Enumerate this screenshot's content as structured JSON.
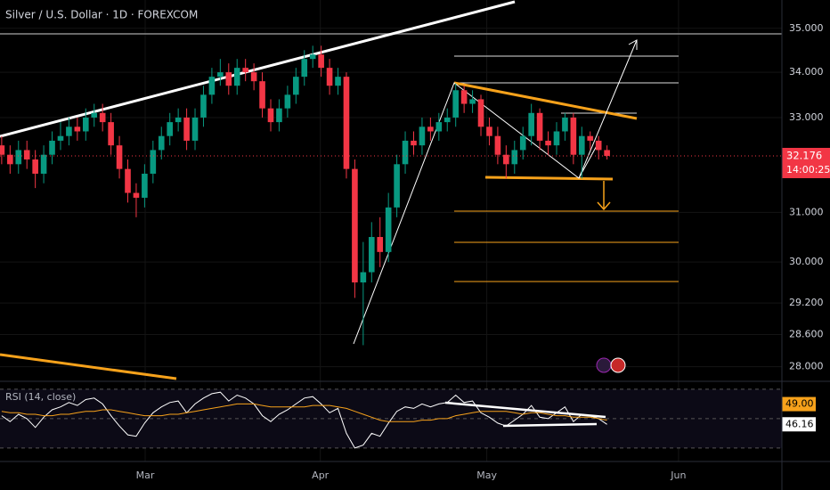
{
  "chart_data": [
    {
      "type": "candlestick",
      "title": "Silver / U.S. Dollar · 1D · FOREXCOM",
      "open": [
        32.4,
        32.2,
        32.0,
        32.3,
        32.1,
        31.8,
        32.2,
        32.5,
        32.6,
        32.8,
        32.7,
        33.0,
        33.1,
        32.9,
        32.4,
        31.9,
        31.4,
        31.3,
        31.8,
        32.3,
        32.6,
        32.9,
        33.0,
        32.5,
        33.0,
        33.5,
        33.9,
        34.0,
        33.7,
        34.1,
        34.0,
        33.8,
        33.2,
        32.9,
        33.2,
        33.5,
        33.9,
        34.3,
        34.4,
        34.1,
        33.7,
        33.9,
        31.9,
        29.6,
        29.8,
        30.5,
        30.2,
        31.1,
        32.0,
        32.5,
        32.4,
        32.8,
        32.7,
        32.9,
        33.0,
        33.6,
        33.3,
        33.4,
        32.8,
        32.6,
        32.2,
        32.0,
        32.3,
        32.6,
        33.1,
        32.5,
        32.4,
        32.7,
        33.0,
        32.2,
        32.6,
        32.5,
        32.3
      ],
      "high": [
        32.6,
        32.4,
        32.5,
        32.5,
        32.3,
        32.4,
        32.7,
        32.9,
        33.0,
        33.0,
        33.2,
        33.3,
        33.3,
        33.1,
        32.6,
        32.1,
        31.6,
        32.0,
        32.5,
        32.8,
        33.1,
        33.2,
        33.2,
        33.2,
        33.7,
        34.1,
        34.3,
        34.2,
        34.3,
        34.3,
        34.2,
        34.0,
        33.4,
        33.4,
        33.7,
        34.1,
        34.5,
        34.6,
        34.6,
        34.3,
        34.1,
        34.0,
        32.1,
        30.4,
        30.8,
        30.9,
        31.4,
        32.2,
        32.7,
        32.7,
        33.0,
        33.0,
        33.1,
        33.2,
        33.75,
        33.7,
        33.6,
        33.5,
        33.0,
        32.8,
        32.4,
        32.5,
        32.8,
        33.3,
        33.2,
        32.7,
        32.9,
        33.1,
        33.1,
        32.8,
        32.7,
        32.6,
        32.4
      ],
      "low": [
        32.0,
        31.8,
        31.8,
        31.9,
        31.5,
        31.6,
        32.0,
        32.3,
        32.4,
        32.5,
        32.5,
        32.8,
        32.7,
        32.2,
        31.7,
        31.2,
        30.9,
        31.1,
        31.6,
        32.1,
        32.4,
        32.7,
        32.3,
        32.3,
        32.8,
        33.3,
        33.7,
        33.5,
        33.5,
        33.8,
        33.6,
        33.0,
        32.7,
        32.7,
        33.0,
        33.3,
        33.7,
        34.1,
        33.9,
        33.5,
        33.5,
        31.7,
        29.3,
        28.4,
        29.6,
        29.9,
        30.0,
        30.9,
        31.8,
        32.2,
        32.2,
        32.5,
        32.5,
        32.7,
        32.8,
        33.1,
        33.1,
        32.6,
        32.4,
        32.0,
        31.7,
        31.8,
        32.1,
        32.4,
        32.3,
        32.2,
        32.2,
        32.5,
        32.0,
        31.7,
        32.3,
        32.1,
        32.1
      ],
      "close": [
        32.2,
        32.0,
        32.3,
        32.1,
        31.8,
        32.2,
        32.5,
        32.6,
        32.8,
        32.7,
        33.0,
        33.1,
        32.9,
        32.4,
        31.9,
        31.4,
        31.3,
        31.8,
        32.3,
        32.6,
        32.9,
        33.0,
        32.5,
        33.0,
        33.5,
        33.9,
        34.0,
        33.7,
        34.1,
        34.0,
        33.8,
        33.2,
        32.9,
        33.2,
        33.5,
        33.9,
        34.3,
        34.4,
        34.1,
        33.7,
        33.9,
        31.9,
        29.6,
        29.8,
        30.5,
        30.2,
        31.1,
        32.0,
        32.5,
        32.4,
        32.8,
        32.7,
        32.9,
        33.0,
        33.6,
        33.3,
        33.4,
        32.8,
        32.6,
        32.2,
        32.0,
        32.3,
        32.6,
        33.1,
        32.5,
        32.4,
        32.7,
        33.0,
        32.2,
        32.6,
        32.5,
        32.3,
        32.176
      ],
      "up_color": "#089981",
      "down_color": "#f23645",
      "log_scale": true,
      "grid": true,
      "ylim": [
        27.78,
        35.66
      ],
      "yticks": [
        {
          "value": 35,
          "label": "35.000"
        },
        {
          "value": 34,
          "label": "34.000"
        },
        {
          "value": 33,
          "label": "33.000"
        },
        {
          "value": 31,
          "label": "31.000"
        },
        {
          "value": 30,
          "label": "30.000"
        },
        {
          "value": 29.2,
          "label": "29.200"
        },
        {
          "value": 28.6,
          "label": "28.600"
        },
        {
          "value": 28,
          "label": "28.000"
        }
      ],
      "xlim": [
        -0.2,
        92.8
      ],
      "xticks": [
        {
          "value": 17.07,
          "label": "Mar"
        },
        {
          "value": 37.9,
          "label": "Apr"
        },
        {
          "value": 57.7,
          "label": "May"
        },
        {
          "value": 80.5,
          "label": "Jun"
        }
      ],
      "last_price": {
        "value": 32.176,
        "label": "32.176"
      },
      "countdown": "14:00:25"
    },
    {
      "type": "line",
      "title": "RSI (14, close)",
      "ylim": [
        24.5,
        74.2
      ],
      "levels": [
        70,
        50,
        30
      ],
      "xlim": [
        -0.2,
        92.8
      ],
      "series": [
        {
          "color": "#ffffff",
          "values": [
            52,
            48,
            53,
            50,
            44,
            51,
            56,
            58,
            61,
            59,
            63,
            64,
            60,
            52,
            45,
            39,
            38,
            47,
            54,
            58,
            61,
            62,
            54,
            60,
            64,
            67,
            68,
            62,
            66,
            64,
            60,
            52,
            48,
            53,
            56,
            60,
            64,
            65,
            60,
            54,
            57,
            40,
            30,
            32,
            40,
            38,
            47,
            55,
            58,
            57,
            60,
            58,
            60,
            61,
            66,
            61,
            62,
            54,
            51,
            47,
            45,
            49,
            53,
            59,
            51,
            50,
            54,
            58,
            48,
            53,
            52,
            50,
            46.16
          ],
          "last_label": "46.16"
        },
        {
          "color": "#f7a21b",
          "values": [
            55,
            54,
            54,
            53,
            53,
            52,
            52,
            53,
            53,
            54,
            55,
            55,
            56,
            56,
            55,
            54,
            53,
            52,
            52,
            52,
            53,
            53,
            54,
            55,
            56,
            57,
            58,
            59,
            60,
            60,
            60,
            59,
            58,
            58,
            58,
            58,
            58,
            59,
            59,
            59,
            58,
            57,
            55,
            53,
            51,
            49,
            48,
            48,
            48,
            48,
            49,
            49,
            50,
            50,
            52,
            53,
            54,
            55,
            55,
            55,
            55,
            54,
            53,
            54,
            54,
            53,
            52,
            52,
            51,
            51,
            51,
            50,
            49
          ],
          "last_label": "49.00"
        }
      ]
    }
  ]
}
